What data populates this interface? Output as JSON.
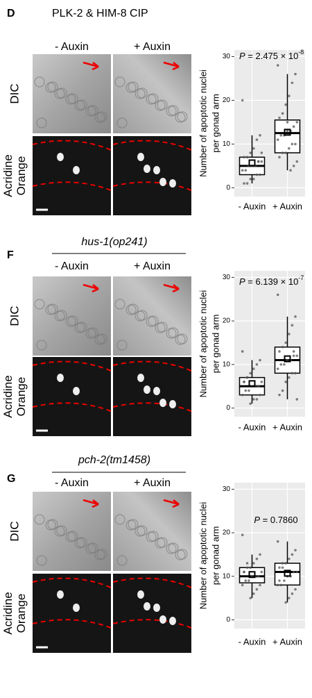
{
  "panels": [
    {
      "letter": "D",
      "title": "PLK-2 & HIM-8 CIP",
      "title_italic": false,
      "columns": [
        "- Auxin",
        "+ Auxin"
      ],
      "rows": [
        [
          "DIC"
        ],
        [
          "Acridine",
          "Orange"
        ]
      ]
    },
    {
      "letter": "F",
      "title": "hus-1(op241)",
      "title_italic": true,
      "columns": [
        "- Auxin",
        "+ Auxin"
      ],
      "rows": [
        [
          "DIC"
        ],
        [
          "Acridine",
          "Orange"
        ]
      ]
    },
    {
      "letter": "G",
      "title": "pch-2(tm1458)",
      "title_italic": true,
      "columns": [
        "- Auxin",
        "+ Auxin"
      ],
      "rows": [
        [
          "DIC"
        ],
        [
          "Acridine",
          "Orange"
        ]
      ]
    }
  ],
  "chart_data": [
    {
      "type": "box",
      "ylabel": [
        "Number of apoptotic nuclei",
        "per gonad arm"
      ],
      "p_label": "P",
      "p_value": " = 2.475 × 10",
      "p_exponent": "-8",
      "categories": [
        "- Auxin",
        "+ Auxin"
      ],
      "ylim": [
        -2,
        31.5
      ],
      "yticks": [
        0,
        10,
        20,
        30
      ],
      "boxes": [
        {
          "whisker_low": 1,
          "q1": 3,
          "median": 5,
          "q3": 7,
          "whisker_high": 12,
          "mean": 5.7,
          "points": [
            20,
            12,
            11,
            9,
            8,
            7,
            7,
            6,
            6,
            5,
            5,
            5,
            4,
            4,
            3,
            3,
            2,
            2,
            1,
            1,
            8,
            6
          ]
        },
        {
          "whisker_low": 4,
          "q1": 8,
          "median": 12.5,
          "q3": 15.5,
          "whisker_high": 26,
          "mean": 12.7,
          "points": [
            28,
            26,
            24,
            21,
            19,
            17,
            16,
            15,
            14,
            13,
            13,
            12,
            12,
            11,
            10,
            10,
            9,
            8,
            8,
            7,
            6,
            5,
            4,
            15
          ]
        }
      ]
    },
    {
      "type": "box",
      "ylabel": [
        "Number of apoptotic nuclei",
        "per gonad arm"
      ],
      "p_label": "P",
      "p_value": " = 6.139 × 10",
      "p_exponent": "-7",
      "categories": [
        "- Auxin",
        "+ Auxin"
      ],
      "ylim": [
        -2,
        31.5
      ],
      "yticks": [
        0,
        10,
        20,
        30
      ],
      "boxes": [
        {
          "whisker_low": 1,
          "q1": 3,
          "median": 5,
          "q3": 7,
          "whisker_high": 11,
          "mean": 5.6,
          "points": [
            13,
            11,
            10,
            9,
            8,
            7,
            6,
            6,
            5,
            5,
            5,
            4,
            4,
            3,
            3,
            2,
            2,
            1,
            7,
            6
          ]
        },
        {
          "whisker_low": 2,
          "q1": 8,
          "median": 11,
          "q3": 14,
          "whisker_high": 21,
          "mean": 11.3,
          "points": [
            26,
            21,
            19,
            17,
            15,
            14,
            13,
            12,
            12,
            11,
            11,
            10,
            10,
            9,
            8,
            8,
            7,
            6,
            4,
            3,
            2,
            13
          ]
        }
      ]
    },
    {
      "type": "box",
      "ylabel": [
        "Number of apoptotic nuclei",
        "per gonad arm"
      ],
      "p_label": "P",
      "p_value": " = 0.7860",
      "p_exponent": "",
      "categories": [
        "- Auxin",
        "+ Auxin"
      ],
      "ylim": [
        -2,
        31.5
      ],
      "yticks": [
        0,
        10,
        20,
        30
      ],
      "boxes": [
        {
          "whisker_low": 5,
          "q1": 8.5,
          "median": 10,
          "q3": 12,
          "whisker_high": 15,
          "mean": 10.4,
          "points": [
            19.5,
            15,
            14,
            13,
            12,
            12,
            11,
            11,
            10,
            10,
            10,
            9,
            9,
            8,
            8,
            7,
            6,
            5,
            13,
            11
          ]
        },
        {
          "whisker_low": 4,
          "q1": 8,
          "median": 11,
          "q3": 13,
          "whisker_high": 18,
          "mean": 10.7,
          "points": [
            18,
            16,
            15,
            14,
            13,
            13,
            12,
            11,
            11,
            10,
            10,
            9,
            8,
            8,
            7,
            6,
            5,
            4,
            12,
            9
          ]
        }
      ]
    }
  ]
}
